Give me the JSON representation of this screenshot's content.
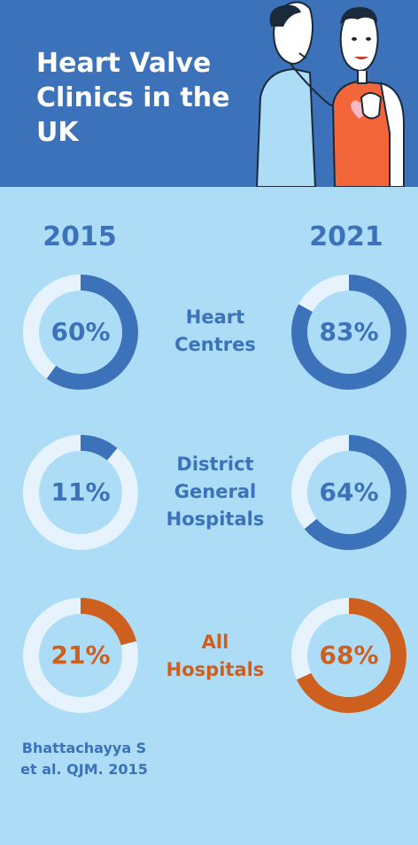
{
  "header": {
    "title": "Heart Valve Clinics in the UK"
  },
  "chart_data": {
    "type": "pie",
    "title": "Heart Valve Clinics in the UK",
    "columns": [
      "2015",
      "2021"
    ],
    "rows": [
      {
        "label": "Heart Centres",
        "values": [
          60,
          83
        ],
        "display": [
          "60%",
          "83%"
        ],
        "color": "#3b72b9"
      },
      {
        "label": "District General Hospitals",
        "values": [
          11,
          64
        ],
        "display": [
          "11%",
          "64%"
        ],
        "color": "#3b72b9"
      },
      {
        "label": "All Hospitals",
        "values": [
          21,
          68
        ],
        "display": [
          "21%",
          "68%"
        ],
        "color": "#cd5f1f"
      }
    ],
    "track_color": "#e6f3fc",
    "source": "Bhattachayya S et al. QJM. 2015"
  },
  "labels": {
    "row0": [
      "Heart",
      "Centres"
    ],
    "row1": [
      "District",
      "General",
      "Hospitals"
    ],
    "row2": [
      "All",
      "Hospitals"
    ],
    "source": [
      "Bhattachayya S",
      "et al. QJM. 2015"
    ]
  }
}
